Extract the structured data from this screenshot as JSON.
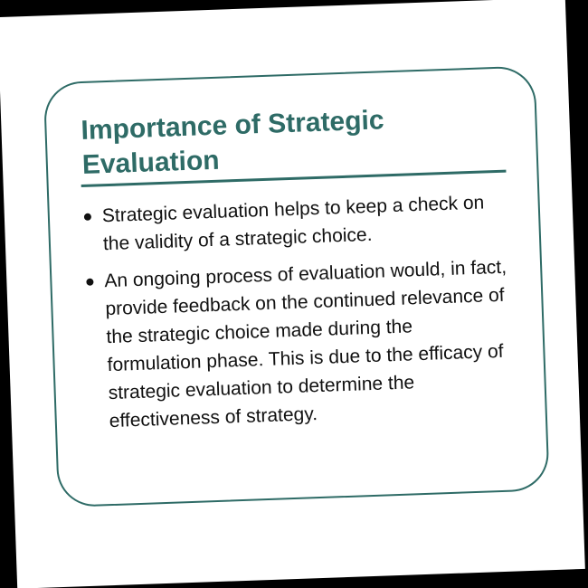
{
  "slide": {
    "title_line1": "Importance of Strategic",
    "title_line2": "Evaluation",
    "bullets": [
      "Strategic evaluation helps to keep a check on the validity of a strategic choice.",
      "An ongoing process of evaluation would, in fact, provide feedback on the continued relevance of the strategic choice made during the formulation phase. This is due to the efficacy of strategic evaluation to determine the effectiveness of strategy."
    ]
  },
  "colors": {
    "accent": "#2e6b66",
    "text": "#111111",
    "background": "#ffffff",
    "surround": "#000000"
  }
}
